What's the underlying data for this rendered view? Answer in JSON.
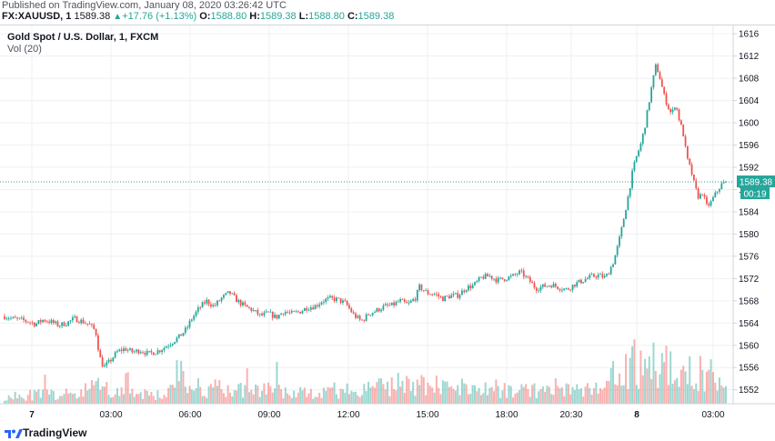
{
  "published": "Published on TradingView.com, January 08, 2020 03:26:42 UTC",
  "header": {
    "symbol": "FX:XAUUSD, 1",
    "last": "1589.38",
    "change": "+17.76 (+1.13%)",
    "o_label": "O:",
    "o_value": "1588.80",
    "h_label": "H:",
    "h_value": "1589.38",
    "l_label": "L:",
    "l_value": "1588.80",
    "c_label": "C:",
    "c_value": "1589.38"
  },
  "legend": {
    "title": "Gold Spot / U.S. Dollar, 1, FXCM",
    "volume": "Vol (20)"
  },
  "badges": {
    "price": "1589.38",
    "countdown": "00:19"
  },
  "footer": {
    "brand_a": "Trading",
    "brand_b": "View"
  },
  "colors": {
    "up": "#26a69a",
    "down": "#ef5350",
    "grid": "#eef0f3",
    "axis": "#787b86"
  },
  "chart_data": {
    "type": "candlestick",
    "title": "Gold Spot / U.S. Dollar, 1, FXCM",
    "y_ticks": [
      1552,
      1556,
      1560,
      1564,
      1568,
      1572,
      1576,
      1580,
      1584,
      1588,
      1592,
      1596,
      1600,
      1604,
      1608,
      1612,
      1616
    ],
    "ylim": [
      1549.5,
      1617.5
    ],
    "x_ticks": [
      "7",
      "03:00",
      "06:00",
      "09:00",
      "12:00",
      "15:00",
      "18:00",
      "20:30",
      "8",
      "03:00"
    ],
    "last_price": 1589.38,
    "price_path": [
      [
        0,
        1565.2
      ],
      [
        2,
        1564.8
      ],
      [
        4,
        1564.6
      ],
      [
        6,
        1564.3
      ],
      [
        8,
        1563.8
      ],
      [
        10,
        1564.6
      ],
      [
        12,
        1564.2
      ],
      [
        14,
        1563.6
      ],
      [
        16,
        1564.0
      ],
      [
        18,
        1564.8
      ],
      [
        20,
        1564.3
      ],
      [
        22,
        1563.7
      ],
      [
        23.5,
        1562.5
      ],
      [
        24.5,
        1558.0
      ],
      [
        25.5,
        1556.0
      ],
      [
        27,
        1557.0
      ],
      [
        29,
        1558.8
      ],
      [
        31,
        1559.4
      ],
      [
        33,
        1558.8
      ],
      [
        35,
        1559.1
      ],
      [
        37,
        1558.5
      ],
      [
        39,
        1558.8
      ],
      [
        41,
        1559.5
      ],
      [
        43,
        1560.5
      ],
      [
        45,
        1561.5
      ],
      [
        47,
        1563.0
      ],
      [
        48,
        1564.5
      ],
      [
        50,
        1566.5
      ],
      [
        52,
        1568.0
      ],
      [
        54,
        1567.0
      ],
      [
        56,
        1568.5
      ],
      [
        58,
        1569.5
      ],
      [
        60,
        1568.0
      ],
      [
        62,
        1567.0
      ],
      [
        64,
        1566.3
      ],
      [
        66,
        1565.3
      ],
      [
        68,
        1565.8
      ],
      [
        70,
        1565.0
      ],
      [
        72,
        1566.1
      ],
      [
        74,
        1565.7
      ],
      [
        76,
        1566.0
      ],
      [
        78,
        1566.8
      ],
      [
        80,
        1567.0
      ],
      [
        82,
        1568.0
      ],
      [
        84,
        1568.4
      ],
      [
        86,
        1568.2
      ],
      [
        88,
        1567.5
      ],
      [
        90,
        1565.5
      ],
      [
        92,
        1564.3
      ],
      [
        94,
        1565.7
      ],
      [
        96,
        1566.3
      ],
      [
        98,
        1567.0
      ],
      [
        100,
        1567.2
      ],
      [
        102,
        1568.0
      ],
      [
        104,
        1567.3
      ],
      [
        106,
        1568.6
      ],
      [
        107,
        1570.5
      ],
      [
        109,
        1569.4
      ],
      [
        111,
        1569.2
      ],
      [
        113,
        1568.4
      ],
      [
        115,
        1568.9
      ],
      [
        117,
        1569.0
      ],
      [
        119,
        1570.3
      ],
      [
        121,
        1570.8
      ],
      [
        123,
        1572.2
      ],
      [
        125,
        1572.5
      ],
      [
        127,
        1571.7
      ],
      [
        129,
        1572.0
      ],
      [
        131,
        1572.4
      ],
      [
        133,
        1573.2
      ],
      [
        134,
        1572.5
      ],
      [
        135.5,
        1571.5
      ],
      [
        137,
        1570.2
      ],
      [
        139,
        1570.6
      ],
      [
        141,
        1570.9
      ],
      [
        143,
        1570.4
      ],
      [
        145,
        1570.0
      ],
      [
        147,
        1571.0
      ],
      [
        149,
        1571.6
      ],
      [
        151,
        1572.3
      ],
      [
        153,
        1572.6
      ],
      [
        155,
        1572.2
      ],
      [
        156,
        1573.5
      ],
      [
        157,
        1575.0
      ],
      [
        158,
        1577.5
      ],
      [
        159,
        1580.5
      ],
      [
        160,
        1584.0
      ],
      [
        161,
        1587.5
      ],
      [
        162,
        1591.5
      ],
      [
        163,
        1594.0
      ],
      [
        164,
        1596.0
      ],
      [
        165,
        1599.0
      ],
      [
        166,
        1603.0
      ],
      [
        167,
        1607.0
      ],
      [
        168,
        1610.5
      ],
      [
        169,
        1608.0
      ],
      [
        170,
        1605.0
      ],
      [
        171,
        1603.0
      ],
      [
        172,
        1601.5
      ],
      [
        173,
        1603.5
      ],
      [
        174,
        1600.5
      ],
      [
        175,
        1598.0
      ],
      [
        176,
        1593.5
      ],
      [
        177,
        1591.5
      ],
      [
        178,
        1588.5
      ],
      [
        179,
        1586.5
      ],
      [
        180,
        1587.5
      ],
      [
        181,
        1585.0
      ],
      [
        182,
        1585.5
      ],
      [
        183,
        1586.8
      ],
      [
        184,
        1588.0
      ],
      [
        185,
        1589.0
      ],
      [
        186,
        1589.38
      ]
    ],
    "volume_path": [
      [
        0,
        600
      ],
      [
        20,
        700
      ],
      [
        23,
        1800
      ],
      [
        25,
        1400
      ],
      [
        28,
        800
      ],
      [
        40,
        700
      ],
      [
        48,
        1200
      ],
      [
        60,
        1000
      ],
      [
        75,
        900
      ],
      [
        90,
        1000
      ],
      [
        105,
        1500
      ],
      [
        110,
        1300
      ],
      [
        120,
        1100
      ],
      [
        135,
        1000
      ],
      [
        150,
        900
      ],
      [
        156,
        1800
      ],
      [
        160,
        2500
      ],
      [
        166,
        3000
      ],
      [
        170,
        2800
      ],
      [
        175,
        2600
      ],
      [
        180,
        2300
      ],
      [
        186,
        1400
      ]
    ]
  }
}
